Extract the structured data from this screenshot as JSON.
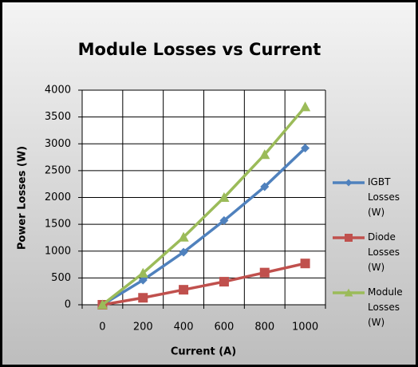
{
  "chart_data": {
    "type": "line",
    "title": "Module Losses vs Current",
    "x_label": "Current (A)",
    "y_label": "Power Losses (W)",
    "categories": [
      0,
      200,
      400,
      600,
      800,
      1000
    ],
    "series": [
      {
        "name": "IGBT Losses (W)",
        "color": "#4f81bd",
        "marker": "diamond",
        "values": [
          0,
          460,
          980,
          1570,
          2200,
          2920
        ]
      },
      {
        "name": "Diode Losses (W)",
        "color": "#c0504d",
        "marker": "square",
        "values": [
          0,
          130,
          280,
          430,
          600,
          770
        ]
      },
      {
        "name": "Module Losses (W)",
        "color": "#9bbb59",
        "marker": "triangle",
        "values": [
          0,
          590,
          1260,
          2000,
          2800,
          3690
        ]
      }
    ],
    "ylim": [
      0,
      4000
    ],
    "yticks": [
      0,
      500,
      1000,
      1500,
      2000,
      2500,
      3000,
      3500,
      4000
    ],
    "grid": true,
    "legend": "right"
  }
}
